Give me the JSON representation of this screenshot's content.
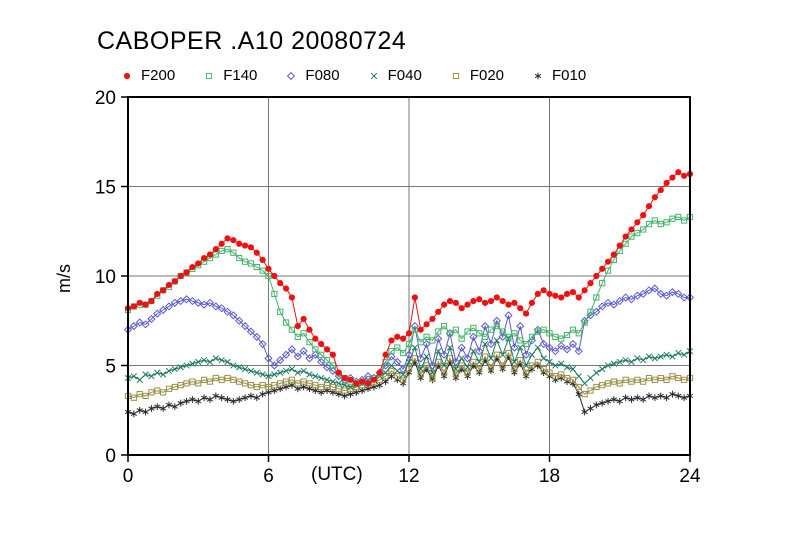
{
  "chart_data": {
    "type": "line",
    "title": "CABOPER .A10 20080724",
    "xlabel": "(UTC)",
    "ylabel": "m/s",
    "xlim": [
      0,
      24
    ],
    "ylim": [
      0,
      20
    ],
    "xticks": [
      0,
      6,
      12,
      18,
      24
    ],
    "yticks": [
      0,
      5,
      10,
      15,
      20
    ],
    "grid": true,
    "legend_position": "top",
    "x_start": 0,
    "x_step": 0.25,
    "colors": {
      "grid": "#777777",
      "axis": "#000000"
    },
    "series": [
      {
        "name": "F200",
        "marker": "filled-circle",
        "color": "#ee1111",
        "values": [
          8.2,
          8.3,
          8.5,
          8.4,
          8.6,
          9.0,
          9.2,
          9.5,
          9.7,
          10.0,
          10.2,
          10.5,
          10.7,
          11.0,
          11.2,
          11.5,
          11.8,
          12.1,
          12.0,
          11.8,
          11.7,
          11.6,
          11.3,
          10.9,
          10.4,
          10.0,
          9.6,
          9.3,
          8.8,
          7.2,
          7.6,
          7.0,
          6.5,
          6.2,
          5.9,
          5.6,
          4.6,
          4.3,
          4.2,
          4.0,
          4.1,
          4.0,
          4.2,
          4.6,
          5.6,
          6.4,
          6.6,
          6.5,
          6.8,
          8.8,
          7.0,
          7.3,
          7.6,
          8.0,
          8.4,
          8.6,
          8.5,
          8.2,
          8.4,
          8.6,
          8.7,
          8.5,
          8.6,
          8.8,
          8.6,
          8.4,
          8.5,
          8.2,
          7.9,
          8.5,
          9.0,
          9.2,
          9.0,
          8.9,
          8.8,
          9.0,
          9.1,
          8.8,
          9.2,
          9.6,
          10.0,
          10.4,
          10.8,
          11.2,
          11.7,
          12.2,
          12.6,
          13.0,
          13.4,
          13.9,
          14.4,
          14.8,
          15.2,
          15.5,
          15.8,
          15.6,
          15.7
        ]
      },
      {
        "name": "F140",
        "marker": "open-square",
        "color": "#46b36a",
        "values": [
          8.1,
          8.3,
          8.4,
          8.4,
          8.6,
          8.9,
          9.2,
          9.4,
          9.7,
          10.0,
          10.2,
          10.4,
          10.6,
          10.8,
          11.0,
          11.2,
          11.4,
          11.5,
          11.3,
          11.0,
          10.8,
          10.7,
          10.5,
          10.3,
          10.0,
          9.0,
          8.0,
          7.4,
          7.0,
          6.6,
          6.8,
          6.3,
          5.9,
          5.6,
          5.3,
          5.0,
          4.5,
          4.3,
          4.1,
          4.0,
          4.1,
          4.0,
          4.3,
          4.5,
          5.2,
          5.8,
          6.0,
          5.7,
          6.2,
          7.0,
          6.3,
          6.6,
          6.4,
          6.9,
          7.2,
          6.8,
          7.0,
          6.5,
          6.9,
          7.1,
          6.8,
          6.6,
          7.0,
          7.2,
          6.9,
          6.6,
          6.8,
          6.4,
          6.2,
          6.6,
          6.9,
          7.0,
          6.8,
          6.6,
          6.5,
          6.7,
          7.0,
          6.8,
          7.4,
          8.0,
          8.8,
          9.6,
          10.3,
          10.9,
          11.4,
          11.8,
          12.2,
          12.4,
          12.6,
          12.9,
          13.1,
          12.9,
          13.0,
          13.2,
          13.3,
          13.1,
          13.3
        ]
      },
      {
        "name": "F080",
        "marker": "open-diamond",
        "color": "#5a5ace",
        "values": [
          7.0,
          7.2,
          7.4,
          7.3,
          7.6,
          7.9,
          8.1,
          8.3,
          8.5,
          8.6,
          8.7,
          8.6,
          8.5,
          8.4,
          8.5,
          8.3,
          8.2,
          8.0,
          7.8,
          7.5,
          7.2,
          6.9,
          6.6,
          6.2,
          5.4,
          5.0,
          5.3,
          5.6,
          5.9,
          5.5,
          5.8,
          5.4,
          5.6,
          5.2,
          4.9,
          4.7,
          4.4,
          4.2,
          4.3,
          4.1,
          4.2,
          4.4,
          4.3,
          4.6,
          5.0,
          5.5,
          5.2,
          4.8,
          5.6,
          7.2,
          5.4,
          6.2,
          5.0,
          6.5,
          5.6,
          6.8,
          5.2,
          6.0,
          5.4,
          6.6,
          5.8,
          7.2,
          6.2,
          7.5,
          6.6,
          7.8,
          6.0,
          7.2,
          5.6,
          6.4,
          7.0,
          6.2,
          6.0,
          5.8,
          6.1,
          5.9,
          6.2,
          5.8,
          7.5,
          7.8,
          8.0,
          8.3,
          8.5,
          8.4,
          8.6,
          8.8,
          8.7,
          8.9,
          9.0,
          9.2,
          9.3,
          9.0,
          8.9,
          9.1,
          9.0,
          8.8,
          8.8
        ]
      },
      {
        "name": "F040",
        "marker": "x-cross",
        "color": "#1e7a5f",
        "values": [
          4.3,
          4.4,
          4.2,
          4.5,
          4.4,
          4.6,
          4.5,
          4.7,
          4.8,
          4.9,
          5.0,
          5.1,
          5.2,
          5.3,
          5.2,
          5.4,
          5.3,
          5.2,
          5.0,
          4.9,
          4.8,
          4.7,
          4.6,
          4.5,
          4.4,
          4.5,
          4.6,
          4.7,
          4.8,
          4.6,
          4.7,
          4.5,
          4.4,
          4.3,
          4.2,
          4.1,
          4.0,
          3.9,
          3.8,
          3.9,
          4.0,
          4.1,
          4.2,
          4.4,
          4.6,
          5.0,
          4.7,
          4.5,
          5.2,
          6.0,
          4.8,
          5.5,
          4.6,
          5.8,
          5.0,
          6.0,
          4.8,
          5.4,
          4.9,
          5.8,
          5.2,
          6.2,
          5.4,
          6.4,
          5.6,
          6.5,
          5.2,
          6.0,
          5.0,
          5.6,
          6.0,
          5.4,
          5.2,
          5.0,
          5.1,
          4.9,
          4.8,
          4.4,
          4.0,
          4.3,
          4.6,
          4.8,
          5.0,
          5.1,
          5.2,
          5.3,
          5.2,
          5.4,
          5.3,
          5.5,
          5.4,
          5.5,
          5.6,
          5.5,
          5.7,
          5.6,
          5.8
        ]
      },
      {
        "name": "F020",
        "marker": "open-square",
        "color": "#9c8f45",
        "values": [
          3.3,
          3.2,
          3.4,
          3.3,
          3.5,
          3.6,
          3.5,
          3.7,
          3.8,
          3.9,
          4.0,
          4.1,
          4.0,
          4.2,
          4.1,
          4.3,
          4.2,
          4.3,
          4.2,
          4.1,
          4.0,
          3.9,
          3.8,
          3.9,
          3.8,
          3.9,
          4.0,
          4.1,
          4.2,
          4.0,
          4.1,
          4.0,
          3.9,
          3.8,
          3.9,
          3.8,
          3.7,
          3.6,
          3.7,
          3.8,
          3.9,
          4.0,
          4.1,
          4.2,
          4.4,
          4.7,
          4.4,
          4.2,
          4.8,
          5.4,
          4.5,
          5.0,
          4.3,
          5.2,
          4.6,
          5.4,
          4.5,
          5.0,
          4.6,
          5.2,
          4.8,
          5.5,
          4.9,
          5.6,
          5.0,
          5.7,
          4.8,
          5.3,
          4.6,
          5.0,
          5.2,
          4.8,
          4.6,
          4.4,
          4.5,
          4.3,
          4.2,
          3.8,
          3.4,
          3.6,
          3.8,
          3.9,
          4.0,
          4.1,
          4.0,
          4.2,
          4.1,
          4.2,
          4.1,
          4.3,
          4.2,
          4.3,
          4.2,
          4.4,
          4.3,
          4.2,
          4.3
        ]
      },
      {
        "name": "F010",
        "marker": "asterisk",
        "color": "#2a2a2a",
        "values": [
          2.4,
          2.3,
          2.5,
          2.4,
          2.6,
          2.7,
          2.6,
          2.8,
          2.7,
          2.9,
          3.0,
          3.1,
          3.0,
          3.2,
          3.1,
          3.3,
          3.2,
          3.1,
          3.0,
          3.1,
          3.2,
          3.3,
          3.2,
          3.4,
          3.5,
          3.6,
          3.7,
          3.8,
          3.9,
          3.7,
          3.8,
          3.7,
          3.6,
          3.5,
          3.6,
          3.5,
          3.4,
          3.3,
          3.4,
          3.5,
          3.6,
          3.7,
          3.8,
          3.9,
          4.1,
          4.4,
          4.2,
          4.0,
          4.6,
          5.2,
          4.3,
          4.8,
          4.2,
          5.0,
          4.4,
          5.2,
          4.3,
          4.8,
          4.4,
          5.0,
          4.6,
          5.3,
          4.7,
          5.4,
          4.8,
          5.5,
          4.6,
          5.1,
          4.4,
          4.8,
          5.0,
          4.6,
          4.4,
          4.2,
          4.3,
          4.1,
          4.0,
          3.4,
          2.4,
          2.6,
          2.8,
          2.9,
          3.0,
          3.1,
          3.0,
          3.2,
          3.1,
          3.2,
          3.1,
          3.3,
          3.2,
          3.3,
          3.2,
          3.4,
          3.3,
          3.2,
          3.3
        ]
      }
    ]
  }
}
